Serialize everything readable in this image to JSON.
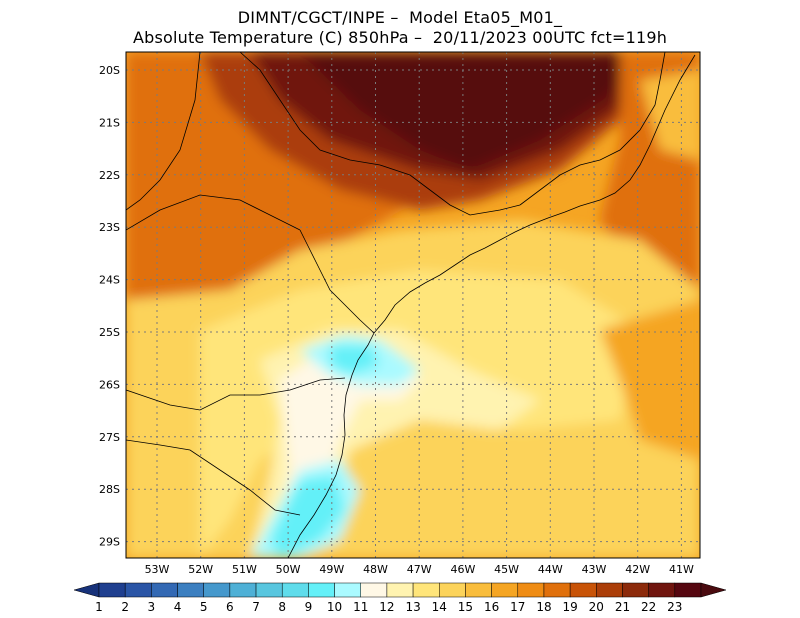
{
  "header": {
    "line1": "DIMNT/CGCT/INPE –  Model Eta05_M01_",
    "line2": "Absolute Temperature (C) 850hPa –  20/11/2023 00UTC fct=119h"
  },
  "map": {
    "lat_labels": [
      "20S",
      "21S",
      "22S",
      "23S",
      "24S",
      "25S",
      "26S",
      "27S",
      "28S",
      "29S"
    ],
    "lon_labels": [
      "53W",
      "52W",
      "51W",
      "50W",
      "49W",
      "48W",
      "47W",
      "46W",
      "45W",
      "44W",
      "43W",
      "42W",
      "41W"
    ]
  },
  "colorbar": {
    "values": [
      "1",
      "2",
      "3",
      "4",
      "5",
      "6",
      "7",
      "8",
      "9",
      "10",
      "11",
      "12",
      "13",
      "14",
      "15",
      "16",
      "17",
      "18",
      "19",
      "20",
      "21",
      "22",
      "23"
    ],
    "colors": [
      "#1f3f8f",
      "#2a55a6",
      "#3369b4",
      "#3c7fc0",
      "#4598cc",
      "#4eb0d6",
      "#58c6df",
      "#5fdceb",
      "#64f0f8",
      "#aafaff",
      "#fff8e6",
      "#fff3b0",
      "#ffe57a",
      "#fcd35a",
      "#f9bd3c",
      "#f5a523",
      "#ef8c14",
      "#e0700c",
      "#c85307",
      "#ab3e08",
      "#8c2a0b",
      "#70150f",
      "#560710"
    ],
    "low_color": "#17327a",
    "high_color": "#4a0a0f"
  }
}
